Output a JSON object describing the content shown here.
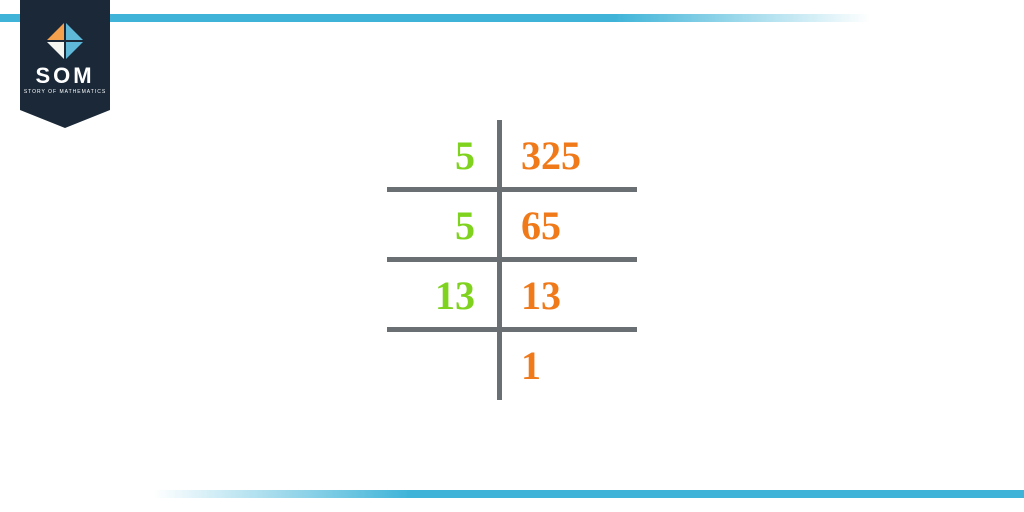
{
  "brand": {
    "name": "SOM",
    "tagline": "STORY OF MATHEMATICS"
  },
  "diagram": {
    "type": "division-ladder",
    "divisor_color": "#7fd31f",
    "quotient_color": "#f07a1a",
    "line_color": "#6a6f73",
    "fontsize": 40,
    "rows": [
      {
        "divisor": "5",
        "quotient": "325"
      },
      {
        "divisor": "5",
        "quotient": "65"
      },
      {
        "divisor": "13",
        "quotient": "13"
      },
      {
        "divisor": "",
        "quotient": "1"
      }
    ]
  },
  "bars": {
    "color": "#3fb4d8"
  }
}
